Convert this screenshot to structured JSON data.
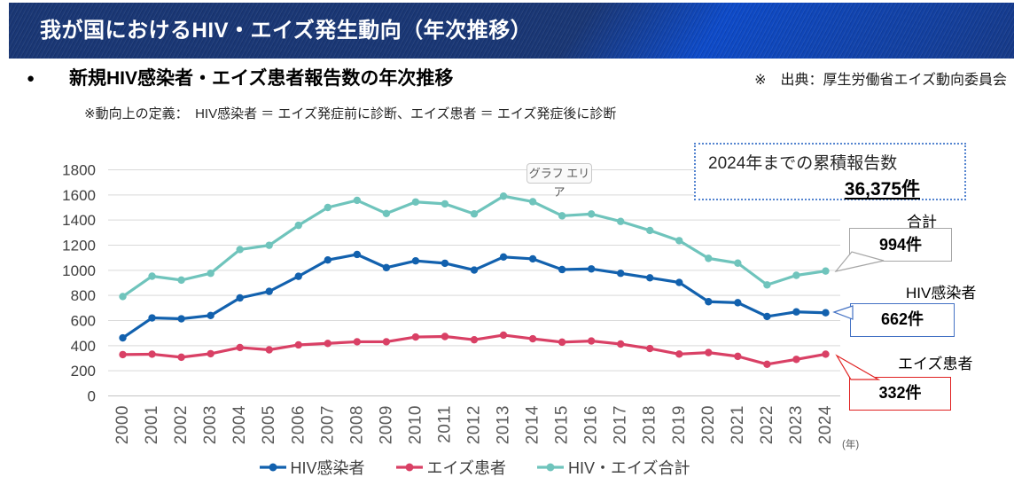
{
  "header": {
    "title": "我が国におけるHIV・エイズ発生動向（年次推移）"
  },
  "heading": {
    "bullet": "●",
    "title": "新規HIV感染者・エイズ患者報告数の年次推移",
    "source_note": "※　出典：厚生労働省エイズ動向委員会"
  },
  "definition_note": "※動向上の定義：　HIV感染者 ＝ エイズ発症前に診断、エイズ患者 ＝ エイズ発症後に診断",
  "annotations": {
    "graph_area_label": "グラフ エリア",
    "cumulative": {
      "line1": "2024年までの累積報告数",
      "value": "36,375件"
    },
    "callout_total": {
      "label": "合計",
      "value": "994件",
      "border_color": "#a6a6a6"
    },
    "callout_hiv": {
      "label": "HIV感染者",
      "value": "662件",
      "border_color": "#4472c4"
    },
    "callout_aids": {
      "label": "エイズ患者",
      "value": "332件",
      "border_color": "#e02020"
    }
  },
  "chart_data": {
    "type": "line",
    "title": "",
    "xlabel": "",
    "ylabel": "",
    "unit_label": "(年)",
    "categories": [
      "2000",
      "2001",
      "2002",
      "2003",
      "2004",
      "2005",
      "2006",
      "2007",
      "2008",
      "2009",
      "2010",
      "2011",
      "2012",
      "2013",
      "2014",
      "2015",
      "2016",
      "2017",
      "2018",
      "2019",
      "2020",
      "2021",
      "2022",
      "2023",
      "2024"
    ],
    "ylim": [
      0,
      1800
    ],
    "ytick_step": 200,
    "grid": true,
    "legend_position": "bottom",
    "series": [
      {
        "name": "HIV感染者",
        "color": "#1261ae",
        "values": [
          462,
          621,
          614,
          640,
          780,
          832,
          952,
          1082,
          1126,
          1021,
          1075,
          1056,
          1002,
          1106,
          1091,
          1006,
          1011,
          976,
          940,
          903,
          750,
          742,
          632,
          669,
          662
        ]
      },
      {
        "name": "エイズ患者",
        "color": "#d94065",
        "values": [
          329,
          332,
          308,
          336,
          385,
          367,
          406,
          418,
          431,
          431,
          469,
          473,
          447,
          484,
          455,
          428,
          437,
          413,
          377,
          333,
          345,
          315,
          252,
          291,
          332
        ]
      },
      {
        "name": "HIV・エイズ合計",
        "color": "#6fc4bc",
        "values": [
          791,
          953,
          922,
          976,
          1165,
          1199,
          1358,
          1500,
          1557,
          1452,
          1544,
          1529,
          1449,
          1590,
          1546,
          1434,
          1448,
          1389,
          1317,
          1236,
          1095,
          1057,
          884,
          960,
          994
        ]
      }
    ],
    "grid_color": "#d9d9d9",
    "axis_color": "#c4c4c4",
    "ytick_color": "#404040",
    "xtick_color": "#595959"
  }
}
